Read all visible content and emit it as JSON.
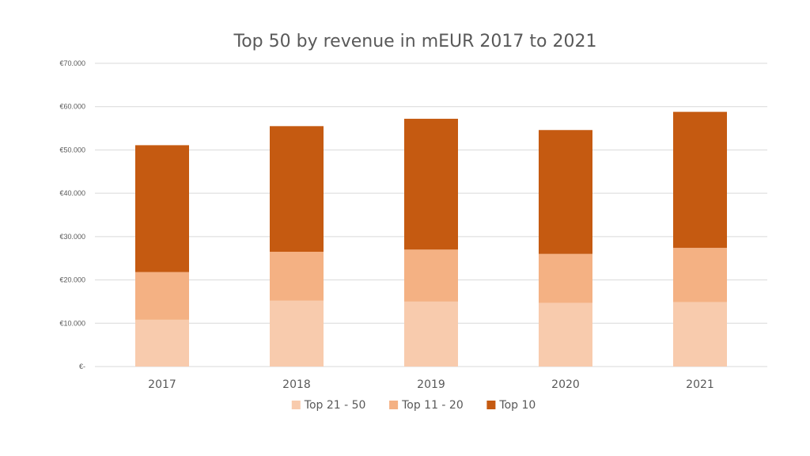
{
  "chart_data": {
    "type": "bar",
    "stacked": true,
    "title": "Top 50 by revenue in mEUR 2017 to 2021",
    "xlabel": "",
    "ylabel": "",
    "categories": [
      "2017",
      "2018",
      "2019",
      "2020",
      "2021"
    ],
    "series": [
      {
        "name": "Top 21 - 50",
        "color": "#f8cbad",
        "values": [
          10800,
          15200,
          15000,
          14700,
          14900
        ]
      },
      {
        "name": "Top 11 - 20",
        "color": "#f4b183",
        "values": [
          11000,
          11300,
          12000,
          11300,
          12500
        ]
      },
      {
        "name": "Top 10",
        "color": "#c55a11",
        "values": [
          29300,
          29000,
          30200,
          28600,
          31400
        ]
      }
    ],
    "ylim": [
      0,
      70000
    ],
    "yticks": [
      0,
      10000,
      20000,
      30000,
      40000,
      50000,
      60000,
      70000
    ],
    "ytick_labels": [
      "€-",
      "€10.000",
      "€20.000",
      "€30.000",
      "€40.000",
      "€50.000",
      "€60.000",
      "€70.000"
    ],
    "grid": true,
    "legend_position": "bottom"
  }
}
